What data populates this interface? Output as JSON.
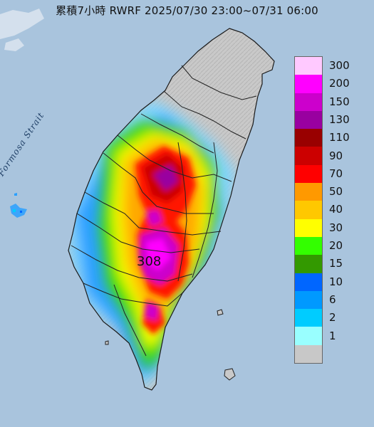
{
  "title": "累積7小時 RWRF 2025/07/30 23:00~07/31 06:00",
  "sea_label": "Formosa Strait",
  "max_label": "308",
  "legend": {
    "items": [
      {
        "label": "300",
        "color": "#ffc9ff"
      },
      {
        "label": "200",
        "color": "#ff00ff"
      },
      {
        "label": "150",
        "color": "#cc00cc"
      },
      {
        "label": "130",
        "color": "#9900a0"
      },
      {
        "label": "110",
        "color": "#990000"
      },
      {
        "label": "90",
        "color": "#cc0000"
      },
      {
        "label": "70",
        "color": "#ff0000"
      },
      {
        "label": "50",
        "color": "#ff9900"
      },
      {
        "label": "40",
        "color": "#ffc800"
      },
      {
        "label": "30",
        "color": "#ffff00"
      },
      {
        "label": "20",
        "color": "#33ff00"
      },
      {
        "label": "15",
        "color": "#339900"
      },
      {
        "label": "10",
        "color": "#0066ff"
      },
      {
        "label": "6",
        "color": "#0099ff"
      },
      {
        "label": "2",
        "color": "#00ccff"
      },
      {
        "label": "1",
        "color": "#99ffff"
      },
      {
        "label": "",
        "color": "#c8c8c8"
      }
    ]
  },
  "colors": {
    "sea": "#a9c4dd",
    "land_dry": "#c9c9c9",
    "border": "#222222"
  }
}
